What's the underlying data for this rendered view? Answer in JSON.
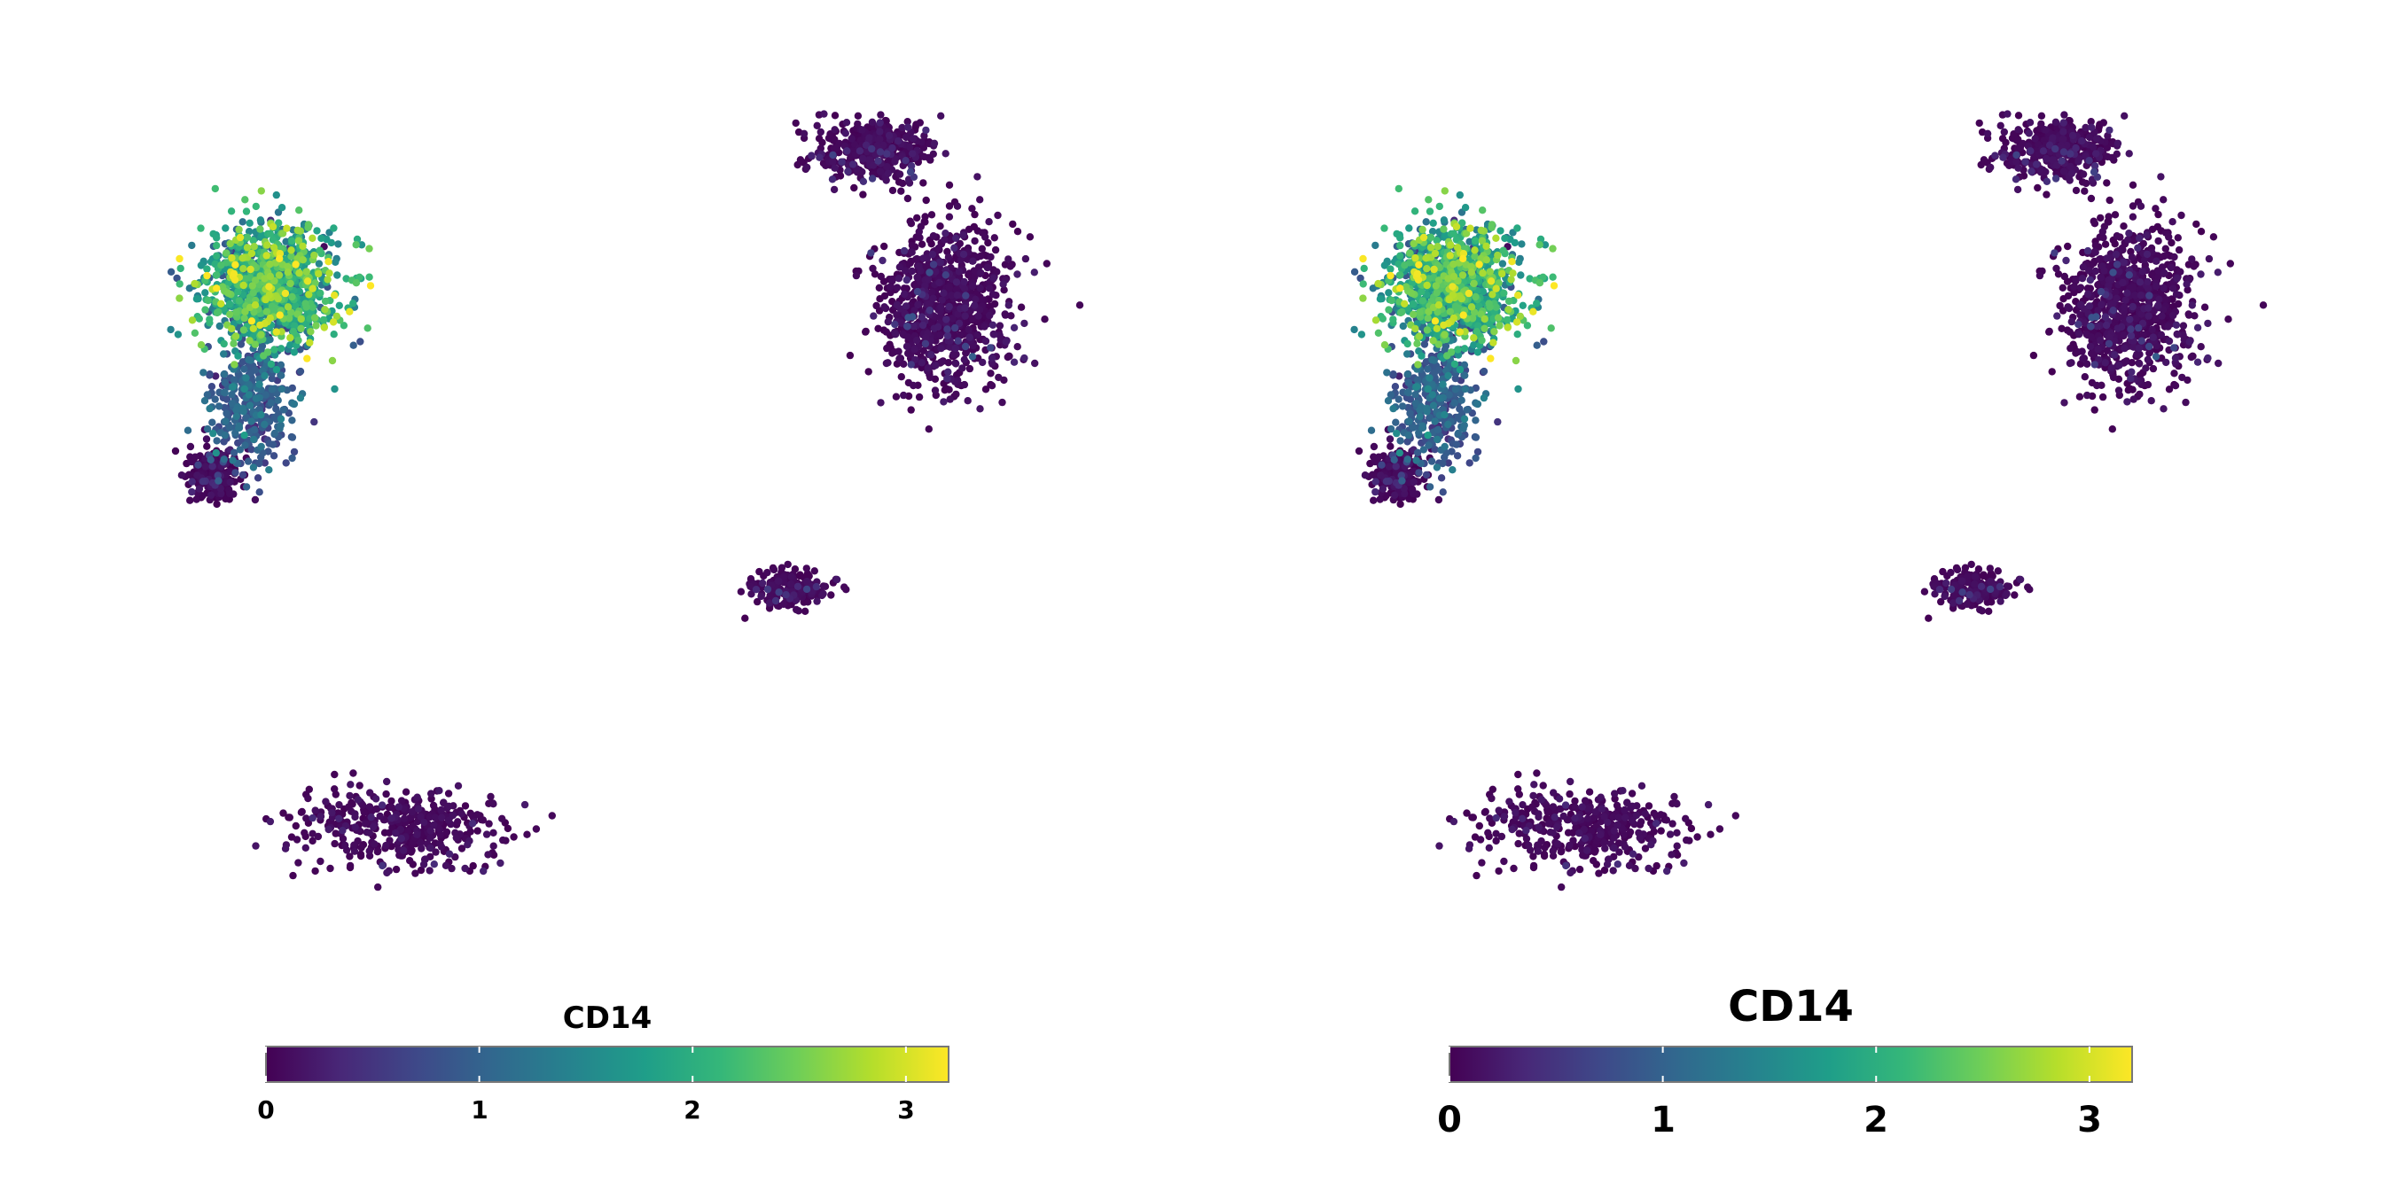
{
  "chart_data": [
    {
      "type": "scatter",
      "title": "",
      "xlabel": "",
      "ylabel": "",
      "grid": false,
      "axes_visible": false,
      "point_color_by": "CD14",
      "colormap": "viridis",
      "colormap_stops": [
        "#440154",
        "#482878",
        "#3e4989",
        "#31688e",
        "#26828e",
        "#1f9e89",
        "#35b779",
        "#6ece58",
        "#b5de2b",
        "#fde725"
      ],
      "colorbar": {
        "title": "CD14",
        "range": [
          0,
          3.2
        ],
        "ticks": [
          0,
          1,
          2,
          3
        ],
        "tick_labels": [
          "0",
          "1",
          "2",
          "3"
        ],
        "placement": "bottom",
        "orientation": "horizontal"
      },
      "clusters_approx": [
        {
          "name": "",
          "cx": -7.4,
          "cy": 5.0,
          "sx": 1.3,
          "sy": 1.2,
          "weight": 0.2,
          "value": 1.9
        },
        {
          "name": "",
          "cx": -7.8,
          "cy": 2.6,
          "sx": 0.8,
          "sy": 1.4,
          "weight": 0.07,
          "value": 0.9
        },
        {
          "name": "",
          "cx": -8.6,
          "cy": 1.0,
          "sx": 0.5,
          "sy": 0.5,
          "weight": 0.04,
          "value": 0.15
        },
        {
          "name": "",
          "cx": 5.5,
          "cy": 7.9,
          "sx": 1.2,
          "sy": 0.6,
          "weight": 0.08,
          "value": 0.12
        },
        {
          "name": "",
          "cx": 7.0,
          "cy": 4.6,
          "sx": 1.3,
          "sy": 1.6,
          "weight": 0.17,
          "value": 0.12
        },
        {
          "name": "",
          "cx": 3.7,
          "cy": -1.5,
          "sx": 0.7,
          "sy": 0.4,
          "weight": 0.04,
          "value": 0.3
        },
        {
          "name": "",
          "cx": -4.6,
          "cy": -6.6,
          "sx": 2.0,
          "sy": 0.8,
          "weight": 0.08,
          "value": 0.05
        }
      ]
    },
    {
      "type": "scatter",
      "title": "",
      "xlabel": "",
      "ylabel": "",
      "grid": false,
      "axes_visible": false,
      "point_color_by": "CD14",
      "colormap": "viridis",
      "colormap_stops": [
        "#440154",
        "#482878",
        "#3e4989",
        "#31688e",
        "#26828e",
        "#1f9e89",
        "#35b779",
        "#6ece58",
        "#b5de2b",
        "#fde725"
      ],
      "colorbar": {
        "title": "CD14",
        "range": [
          0,
          3.2
        ],
        "ticks": [
          0,
          1,
          2,
          3
        ],
        "tick_labels": [
          "0",
          "1",
          "2",
          "3"
        ],
        "placement": "bottom",
        "orientation": "horizontal"
      },
      "clusters_approx": [
        {
          "name": "",
          "cx": -7.4,
          "cy": 5.0,
          "sx": 1.3,
          "sy": 1.2,
          "weight": 0.2,
          "value": 1.9
        },
        {
          "name": "",
          "cx": -7.8,
          "cy": 2.6,
          "sx": 0.8,
          "sy": 1.4,
          "weight": 0.07,
          "value": 0.9
        },
        {
          "name": "",
          "cx": -8.6,
          "cy": 1.0,
          "sx": 0.5,
          "sy": 0.5,
          "weight": 0.04,
          "value": 0.15
        },
        {
          "name": "",
          "cx": 5.5,
          "cy": 7.9,
          "sx": 1.2,
          "sy": 0.6,
          "weight": 0.08,
          "value": 0.12
        },
        {
          "name": "",
          "cx": 7.0,
          "cy": 4.6,
          "sx": 1.3,
          "sy": 1.6,
          "weight": 0.17,
          "value": 0.12
        },
        {
          "name": "",
          "cx": 3.7,
          "cy": -1.5,
          "sx": 0.7,
          "sy": 0.4,
          "weight": 0.04,
          "value": 0.3
        },
        {
          "name": "",
          "cx": -4.6,
          "cy": -6.6,
          "sx": 2.0,
          "sy": 0.8,
          "weight": 0.08,
          "value": 0.05
        }
      ]
    }
  ]
}
